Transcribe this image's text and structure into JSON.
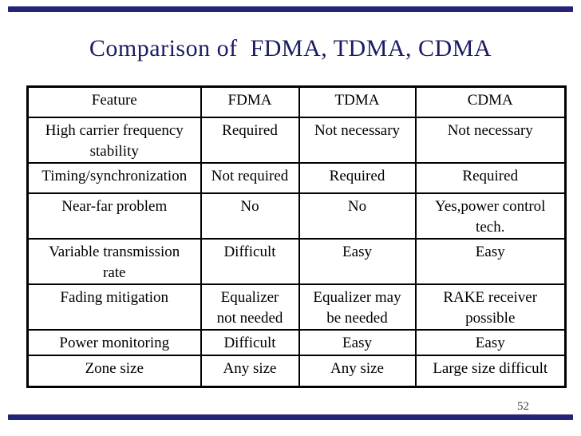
{
  "slide": {
    "title": "Comparison of  FDMA, TDMA, CDMA",
    "page_number": "52",
    "title_color": "#1b1c63",
    "accent_bar_color": "#232377"
  },
  "table": {
    "headers": [
      "Feature",
      "FDMA",
      "TDMA",
      "CDMA"
    ],
    "rows": [
      [
        "High carrier frequency\nstability",
        "Required",
        "Not necessary",
        "Not necessary"
      ],
      [
        "Timing/synchronization",
        "Not required",
        "Required",
        "Required"
      ],
      [
        "Near-far problem",
        "No",
        "No",
        "Yes,power control\ntech."
      ],
      [
        "Variable transmission\nrate",
        "Difficult",
        "Easy",
        "Easy"
      ],
      [
        "Fading mitigation",
        "Equalizer\nnot needed",
        "Equalizer may\nbe needed",
        "RAKE receiver\npossible"
      ],
      [
        "Power monitoring",
        "Difficult",
        "Easy",
        "Easy"
      ],
      [
        "Zone size",
        "Any size",
        "Any size",
        "Large size difficult"
      ]
    ]
  }
}
